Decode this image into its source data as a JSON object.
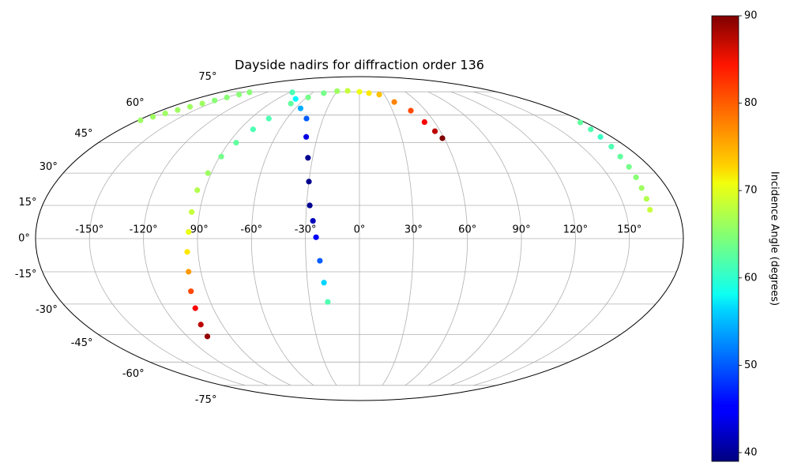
{
  "chart_data": {
    "type": "scatter",
    "projection": "mollweide",
    "title": "Dayside nadirs for diffraction order 136",
    "colorbar_label": "Incidence Angle (degrees)",
    "colormap": "jet",
    "clim": [
      39,
      90
    ],
    "cticks": [
      40,
      50,
      60,
      70,
      80,
      90
    ],
    "grid": true,
    "xticks": [
      {
        "value": -150,
        "label": "-150°"
      },
      {
        "value": -120,
        "label": "-120°"
      },
      {
        "value": -90,
        "label": "-90°"
      },
      {
        "value": -60,
        "label": "-60°"
      },
      {
        "value": -30,
        "label": "-30°"
      },
      {
        "value": 0,
        "label": "0°"
      },
      {
        "value": 30,
        "label": "30°"
      },
      {
        "value": 60,
        "label": "60°"
      },
      {
        "value": 90,
        "label": "90°"
      },
      {
        "value": 120,
        "label": "120°"
      },
      {
        "value": 150,
        "label": "150°"
      }
    ],
    "yticks": [
      {
        "value": -75,
        "label": "-75°"
      },
      {
        "value": -60,
        "label": "-60°"
      },
      {
        "value": -45,
        "label": "-45°"
      },
      {
        "value": -30,
        "label": "-30°"
      },
      {
        "value": -15,
        "label": "-15°"
      },
      {
        "value": 0,
        "label": "0°"
      },
      {
        "value": 15,
        "label": "15°"
      },
      {
        "value": 30,
        "label": "30°"
      },
      {
        "value": 45,
        "label": "45°"
      },
      {
        "value": 60,
        "label": "60°"
      },
      {
        "value": 75,
        "label": "75°"
      }
    ],
    "series": [
      {
        "lon": [
          -142,
          -146,
          -150,
          -154,
          -158,
          -162,
          -166,
          -170,
          -174,
          -178,
          176,
          174,
          172,
          170,
          168,
          167,
          166,
          165,
          164.5,
          164
        ],
        "lat": [
          74.6,
          73,
          71,
          69,
          67,
          65,
          63,
          61,
          59,
          57,
          55.8,
          52,
          48,
          43,
          38,
          33,
          28,
          23,
          18,
          13
        ],
        "values": [
          65,
          65,
          65,
          65,
          66,
          66,
          66,
          66,
          66,
          66,
          63,
          62,
          61,
          62,
          63,
          64,
          65,
          66,
          67,
          68
        ]
      },
      {
        "lon": [
          -106,
          -104,
          -101,
          -99,
          -97,
          -96,
          -95,
          -94.5,
          -94.4,
          -92,
          -89,
          -85,
          -80,
          -75,
          -69,
          -58,
          -45,
          -30,
          -16,
          0,
          12,
          24,
          36,
          46.5,
          52,
          56,
          58.7
        ],
        "lat": [
          -46,
          -40,
          -32,
          -24,
          -15,
          -6,
          3,
          12,
          22,
          30,
          38,
          45,
          52,
          58,
          67,
          71,
          74,
          75.5,
          75.7,
          75,
          74,
          73,
          68,
          62.6,
          56,
          51,
          47.3
        ],
        "values": [
          89,
          87,
          84,
          80,
          76,
          72,
          70,
          68,
          67,
          66,
          64,
          63,
          62,
          62,
          63,
          64,
          64,
          66,
          68,
          70,
          72,
          74,
          77,
          80,
          84,
          87,
          90
        ]
      },
      {
        "lon": [
          -86.7,
          -70,
          -55,
          -43.8,
          -38,
          -33,
          -30,
          -28.2,
          -26,
          -24.1,
          -22.2,
          -20.5,
          -19.1
        ],
        "lat": [
          74.6,
          70,
          64,
          58,
          48,
          37.4,
          26,
          15,
          8,
          0.6,
          -10,
          -20,
          -29
        ],
        "values": [
          62,
          58,
          54,
          50,
          44,
          40,
          39.5,
          40,
          42,
          45,
          50,
          56,
          62
        ]
      }
    ]
  }
}
